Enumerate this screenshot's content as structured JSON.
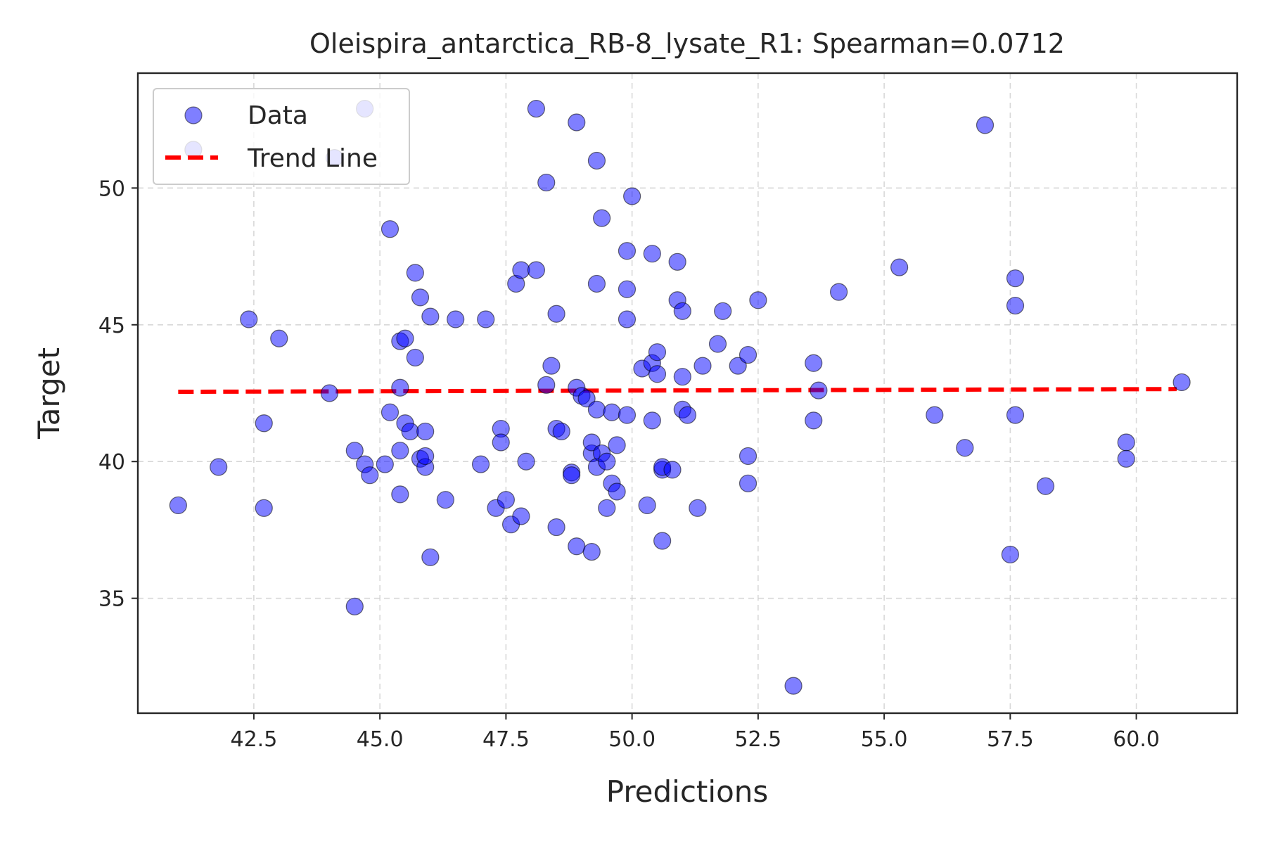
{
  "chart_data": {
    "type": "scatter",
    "title": "Oleispira_antarctica_RB-8_lysate_R1: Spearman=0.0712",
    "xlabel": "Predictions",
    "ylabel": "Target",
    "xlim": [
      40.2,
      62.0
    ],
    "ylim": [
      30.8,
      54.2
    ],
    "xticks": [
      42.5,
      45.0,
      47.5,
      50.0,
      52.5,
      55.0,
      57.5,
      60.0
    ],
    "xtick_labels": [
      "42.5",
      "45.0",
      "47.5",
      "50.0",
      "52.5",
      "55.0",
      "57.5",
      "60.0"
    ],
    "yticks": [
      35,
      40,
      45,
      50
    ],
    "ytick_labels": [
      "35",
      "40",
      "45",
      "50"
    ],
    "grid": true,
    "legend": {
      "position": "top-left",
      "entries": [
        "Data",
        "Trend Line"
      ]
    },
    "colors": {
      "points": "#0000ff",
      "point_edge": "#000000",
      "trend": "#ff0000",
      "axes": "#262626"
    },
    "series": [
      {
        "name": "Data",
        "type": "scatter",
        "points": [
          [
            41.0,
            38.4
          ],
          [
            41.3,
            51.4
          ],
          [
            41.8,
            39.8
          ],
          [
            42.4,
            45.2
          ],
          [
            42.7,
            41.4
          ],
          [
            42.7,
            38.3
          ],
          [
            43.0,
            44.5
          ],
          [
            44.0,
            42.5
          ],
          [
            44.1,
            51.1
          ],
          [
            44.5,
            40.4
          ],
          [
            44.5,
            34.7
          ],
          [
            44.7,
            39.9
          ],
          [
            44.7,
            52.9
          ],
          [
            44.8,
            39.5
          ],
          [
            45.1,
            39.9
          ],
          [
            45.2,
            48.5
          ],
          [
            45.2,
            41.8
          ],
          [
            45.4,
            42.7
          ],
          [
            45.4,
            38.8
          ],
          [
            45.4,
            44.4
          ],
          [
            45.4,
            40.4
          ],
          [
            45.5,
            41.4
          ],
          [
            45.5,
            44.5
          ],
          [
            45.6,
            41.1
          ],
          [
            45.7,
            43.8
          ],
          [
            45.7,
            46.9
          ],
          [
            45.8,
            46.0
          ],
          [
            45.8,
            40.1
          ],
          [
            45.9,
            39.8
          ],
          [
            45.9,
            41.1
          ],
          [
            45.9,
            40.2
          ],
          [
            46.0,
            45.3
          ],
          [
            46.0,
            36.5
          ],
          [
            46.3,
            38.6
          ],
          [
            46.5,
            45.2
          ],
          [
            47.0,
            39.9
          ],
          [
            47.1,
            45.2
          ],
          [
            47.3,
            38.3
          ],
          [
            47.4,
            41.2
          ],
          [
            47.4,
            40.7
          ],
          [
            47.5,
            38.6
          ],
          [
            47.6,
            37.7
          ],
          [
            47.7,
            46.5
          ],
          [
            47.8,
            38.0
          ],
          [
            47.8,
            47.0
          ],
          [
            47.9,
            40.0
          ],
          [
            48.1,
            52.9
          ],
          [
            48.1,
            47.0
          ],
          [
            48.3,
            50.2
          ],
          [
            48.3,
            42.8
          ],
          [
            48.4,
            43.5
          ],
          [
            48.5,
            41.2
          ],
          [
            48.5,
            45.4
          ],
          [
            48.6,
            41.1
          ],
          [
            48.5,
            37.6
          ],
          [
            48.8,
            39.6
          ],
          [
            48.9,
            42.7
          ],
          [
            48.8,
            39.5
          ],
          [
            48.9,
            36.9
          ],
          [
            48.9,
            52.4
          ],
          [
            49.0,
            42.4
          ],
          [
            49.1,
            42.3
          ],
          [
            49.2,
            36.7
          ],
          [
            49.2,
            40.3
          ],
          [
            49.2,
            40.7
          ],
          [
            49.3,
            41.9
          ],
          [
            49.3,
            51.0
          ],
          [
            49.3,
            46.5
          ],
          [
            49.3,
            39.8
          ],
          [
            49.4,
            48.9
          ],
          [
            49.4,
            40.3
          ],
          [
            49.5,
            38.3
          ],
          [
            49.5,
            40.0
          ],
          [
            49.6,
            41.8
          ],
          [
            49.6,
            39.2
          ],
          [
            49.7,
            38.9
          ],
          [
            49.7,
            40.6
          ],
          [
            49.9,
            45.2
          ],
          [
            49.9,
            46.3
          ],
          [
            49.9,
            41.7
          ],
          [
            49.9,
            47.7
          ],
          [
            50.0,
            49.7
          ],
          [
            50.2,
            43.4
          ],
          [
            50.3,
            38.4
          ],
          [
            50.4,
            43.6
          ],
          [
            50.4,
            41.5
          ],
          [
            50.4,
            47.6
          ],
          [
            50.5,
            44.0
          ],
          [
            50.5,
            43.2
          ],
          [
            50.6,
            39.7
          ],
          [
            50.6,
            37.1
          ],
          [
            50.6,
            39.8
          ],
          [
            50.8,
            39.7
          ],
          [
            50.9,
            47.3
          ],
          [
            50.9,
            45.9
          ],
          [
            51.0,
            45.5
          ],
          [
            51.0,
            43.1
          ],
          [
            51.0,
            41.9
          ],
          [
            51.1,
            41.7
          ],
          [
            51.3,
            38.3
          ],
          [
            51.4,
            43.5
          ],
          [
            51.7,
            44.3
          ],
          [
            51.8,
            45.5
          ],
          [
            52.1,
            43.5
          ],
          [
            52.3,
            40.2
          ],
          [
            52.3,
            39.2
          ],
          [
            52.3,
            43.9
          ],
          [
            52.5,
            45.9
          ],
          [
            53.2,
            31.8
          ],
          [
            53.6,
            41.5
          ],
          [
            53.6,
            43.6
          ],
          [
            53.7,
            42.6
          ],
          [
            54.1,
            46.2
          ],
          [
            55.3,
            47.1
          ],
          [
            56.0,
            41.7
          ],
          [
            56.6,
            40.5
          ],
          [
            57.0,
            52.3
          ],
          [
            57.6,
            46.7
          ],
          [
            57.6,
            41.7
          ],
          [
            57.6,
            45.7
          ],
          [
            57.5,
            36.6
          ],
          [
            58.2,
            39.1
          ],
          [
            59.8,
            40.7
          ],
          [
            59.8,
            40.1
          ],
          [
            60.9,
            42.9
          ]
        ]
      },
      {
        "name": "Trend Line",
        "type": "line",
        "points": [
          [
            41.0,
            42.55
          ],
          [
            60.8,
            42.65
          ]
        ]
      }
    ]
  }
}
